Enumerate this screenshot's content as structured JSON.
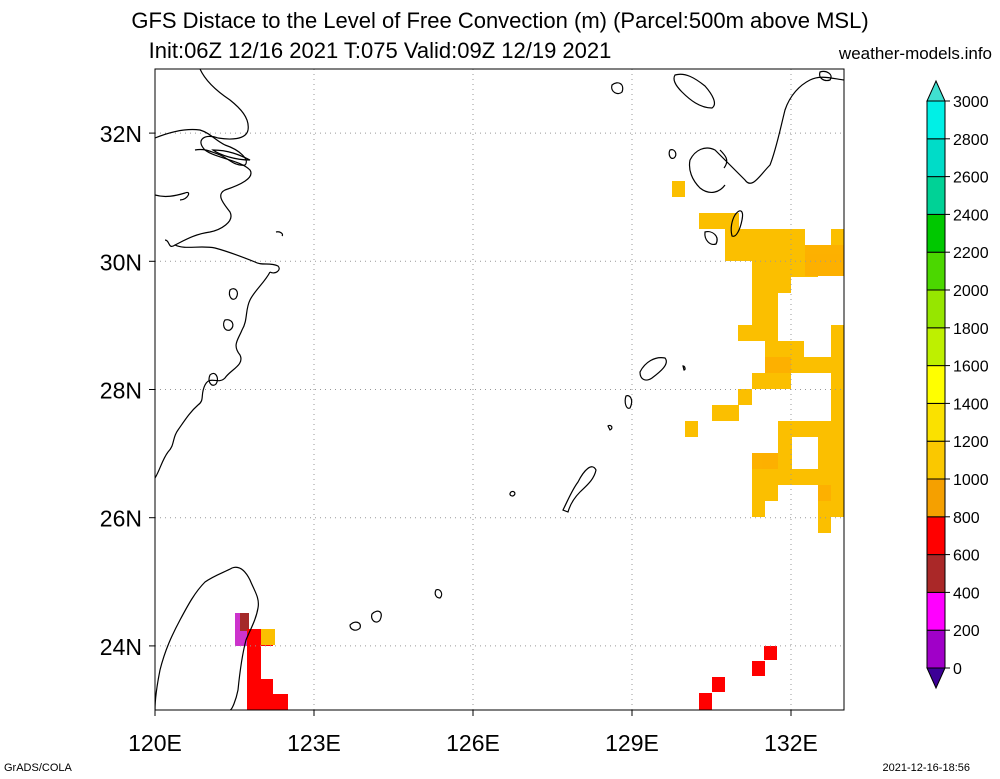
{
  "header": {
    "title_line1": "GFS Distace to the Level of Free Convection (m) (Parcel:500m above MSL)",
    "title_line2": "Init:06Z 12/16 2021 T:075 Valid:09Z 12/19 2021",
    "site": "weather-models.info"
  },
  "footer": {
    "left": "GrADS/COLA",
    "right": "2021-12-16-18:56"
  },
  "map": {
    "lon_range": [
      120,
      133
    ],
    "lat_range": [
      23,
      33
    ],
    "lon_ticks": [
      "120E",
      "123E",
      "126E",
      "129E",
      "132E"
    ],
    "lat_ticks": [
      "24N",
      "26N",
      "28N",
      "30N",
      "32N"
    ],
    "grid": true
  },
  "colorbar": {
    "labels": [
      "0",
      "200",
      "400",
      "600",
      "800",
      "1000",
      "1200",
      "1400",
      "1600",
      "1800",
      "2000",
      "2200",
      "2400",
      "2600",
      "2800",
      "3000"
    ],
    "colors": [
      "#3c0096",
      "#a000c8",
      "#ff00ff",
      "#aa2828",
      "#ff0000",
      "#f5a000",
      "#fac800",
      "#fae100",
      "#ffff00",
      "#bef000",
      "#96e600",
      "#4bd700",
      "#00c800",
      "#00d296",
      "#00dcc8",
      "#00f0e6",
      "#40e0d0"
    ]
  },
  "legend_colors": {
    "red": "#ff0000",
    "orange": "#ffa500",
    "gold": "#fbbf00",
    "magenta": "#cc33cc",
    "maroon": "#a52a2a"
  }
}
